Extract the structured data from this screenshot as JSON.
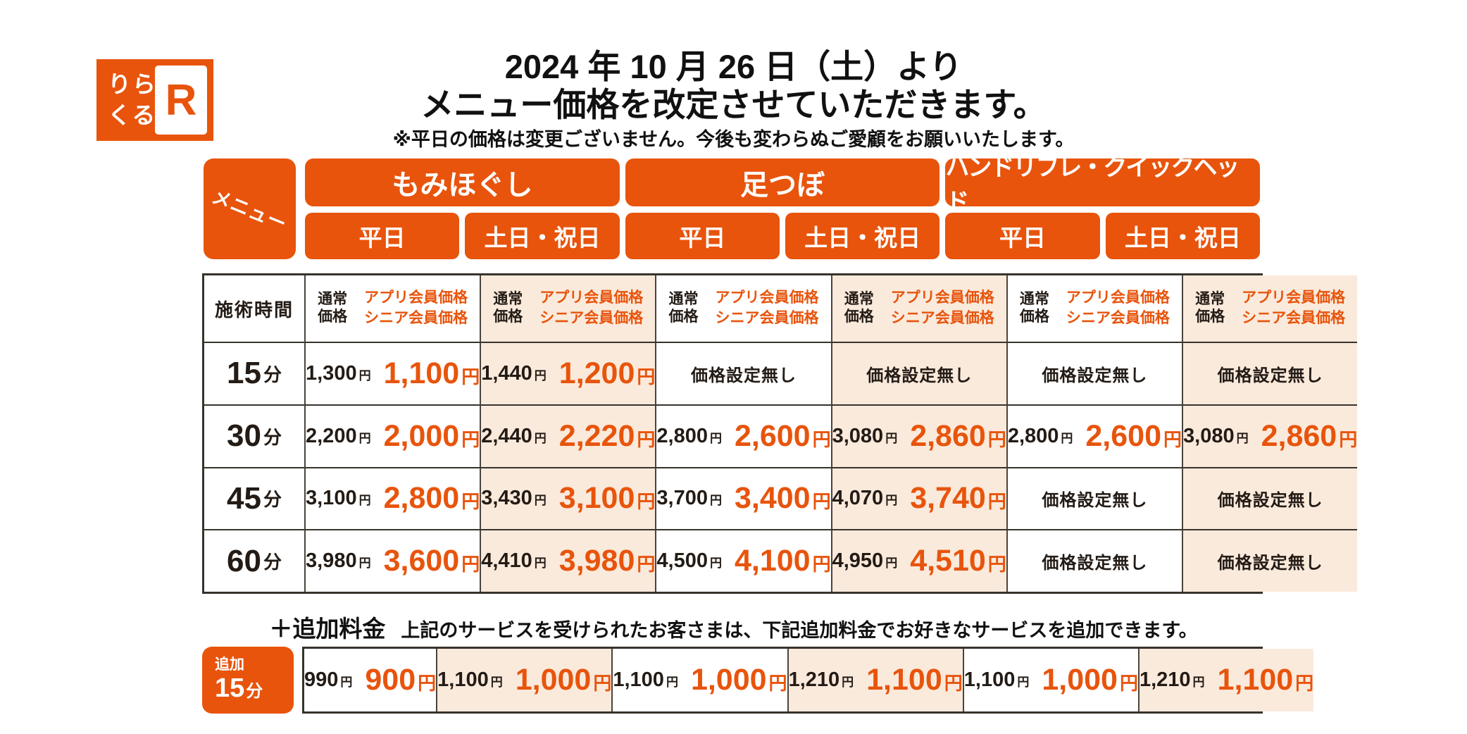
{
  "colors": {
    "orange": "#E8540C",
    "peach": "#FAEADC",
    "ink": "#231B15"
  },
  "logo": {
    "line1": "りら",
    "line2": "くる",
    "r": "R"
  },
  "header": {
    "title_line1": "2024 年 10 月 26 日（土）より",
    "title_line2": "メニュー価格を改定させていただきます。",
    "note": "※平日の価格は変更ございません。今後も変わらぬご愛顧をお願いいたします。"
  },
  "table": {
    "menu_label": "メニュー",
    "time_header": "施術時間",
    "normal_price_label": [
      "通常",
      "価格"
    ],
    "member_price_label": [
      "アプリ会員価格",
      "シニア会員価格"
    ],
    "no_price_label": "価格設定無し",
    "yen": "円",
    "groups": [
      {
        "label": "もみほぐし",
        "days": [
          "平日",
          "土日・祝日"
        ]
      },
      {
        "label": "足つぼ",
        "days": [
          "平日",
          "土日・祝日"
        ]
      },
      {
        "label": "ハンドリフレ・クイックヘッド",
        "days": [
          "平日",
          "土日・祝日"
        ]
      }
    ],
    "rows": [
      {
        "time": "15",
        "unit": "分",
        "cells": [
          {
            "normal": "1,300",
            "member": "1,100"
          },
          {
            "normal": "1,440",
            "member": "1,200"
          },
          {
            "none": true
          },
          {
            "none": true
          },
          {
            "none": true
          },
          {
            "none": true
          }
        ]
      },
      {
        "time": "30",
        "unit": "分",
        "cells": [
          {
            "normal": "2,200",
            "member": "2,000"
          },
          {
            "normal": "2,440",
            "member": "2,220"
          },
          {
            "normal": "2,800",
            "member": "2,600"
          },
          {
            "normal": "3,080",
            "member": "2,860"
          },
          {
            "normal": "2,800",
            "member": "2,600"
          },
          {
            "normal": "3,080",
            "member": "2,860"
          }
        ]
      },
      {
        "time": "45",
        "unit": "分",
        "cells": [
          {
            "normal": "3,100",
            "member": "2,800"
          },
          {
            "normal": "3,430",
            "member": "3,100"
          },
          {
            "normal": "3,700",
            "member": "3,400"
          },
          {
            "normal": "4,070",
            "member": "3,740"
          },
          {
            "none": true
          },
          {
            "none": true
          }
        ]
      },
      {
        "time": "60",
        "unit": "分",
        "cells": [
          {
            "normal": "3,980",
            "member": "3,600"
          },
          {
            "normal": "4,410",
            "member": "3,980"
          },
          {
            "normal": "4,500",
            "member": "4,100"
          },
          {
            "normal": "4,950",
            "member": "4,510"
          },
          {
            "none": true
          },
          {
            "none": true
          }
        ]
      }
    ]
  },
  "addon": {
    "heading_plus": "＋追加料金",
    "heading_desc": "上記のサービスを受けられたお客さまは、下記追加料金でお好きなサービスを追加できます。",
    "time_small": "追加",
    "time": "15",
    "unit": "分",
    "cells": [
      {
        "normal": "990",
        "member": "900"
      },
      {
        "normal": "1,100",
        "member": "1,000"
      },
      {
        "normal": "1,100",
        "member": "1,000"
      },
      {
        "normal": "1,210",
        "member": "1,100"
      },
      {
        "normal": "1,100",
        "member": "1,000"
      },
      {
        "normal": "1,210",
        "member": "1,100"
      }
    ]
  }
}
